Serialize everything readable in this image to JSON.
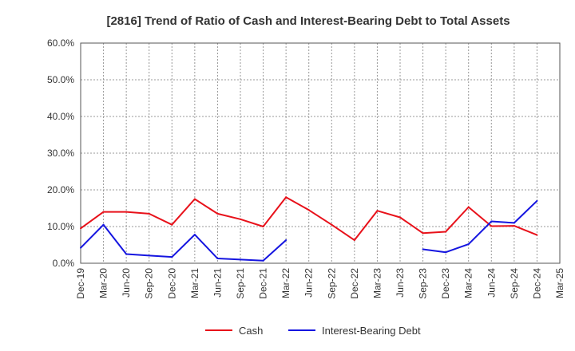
{
  "chart_data": {
    "type": "line",
    "title": "[2816]  Trend of Ratio of Cash and Interest-Bearing Debt to Total Assets",
    "xlabel": "",
    "ylabel": "",
    "ylim": [
      0,
      60
    ],
    "grid": true,
    "legend_position": "bottom-center",
    "yticks": [
      0,
      10,
      20,
      30,
      40,
      50,
      60
    ],
    "ytick_labels": [
      "0.0%",
      "10.0%",
      "20.0%",
      "30.0%",
      "40.0%",
      "50.0%",
      "60.0%"
    ],
    "categories": [
      "Dec-19",
      "Mar-20",
      "Jun-20",
      "Sep-20",
      "Dec-20",
      "Mar-21",
      "Jun-21",
      "Sep-21",
      "Dec-21",
      "Mar-22",
      "Jun-22",
      "Sep-22",
      "Dec-22",
      "Mar-23",
      "Jun-23",
      "Sep-23",
      "Dec-23",
      "Mar-24",
      "Jun-24",
      "Sep-24",
      "Dec-24",
      "Mar-25"
    ],
    "series": [
      {
        "name": "Cash",
        "color": "#e8111a",
        "values": [
          9.5,
          14.0,
          14.0,
          13.5,
          10.5,
          17.5,
          13.5,
          12.0,
          10.0,
          18.0,
          14.5,
          10.5,
          6.3,
          14.3,
          12.5,
          8.2,
          8.6,
          15.3,
          10.1,
          10.2,
          7.7,
          null
        ]
      },
      {
        "name": "Interest-Bearing Debt",
        "color": "#1515e0",
        "values": [
          4.2,
          10.5,
          2.5,
          2.1,
          1.7,
          7.8,
          1.3,
          1.0,
          0.7,
          6.3,
          null,
          null,
          null,
          null,
          null,
          3.8,
          3.0,
          5.2,
          11.4,
          11.0,
          17.0,
          null
        ]
      }
    ]
  }
}
